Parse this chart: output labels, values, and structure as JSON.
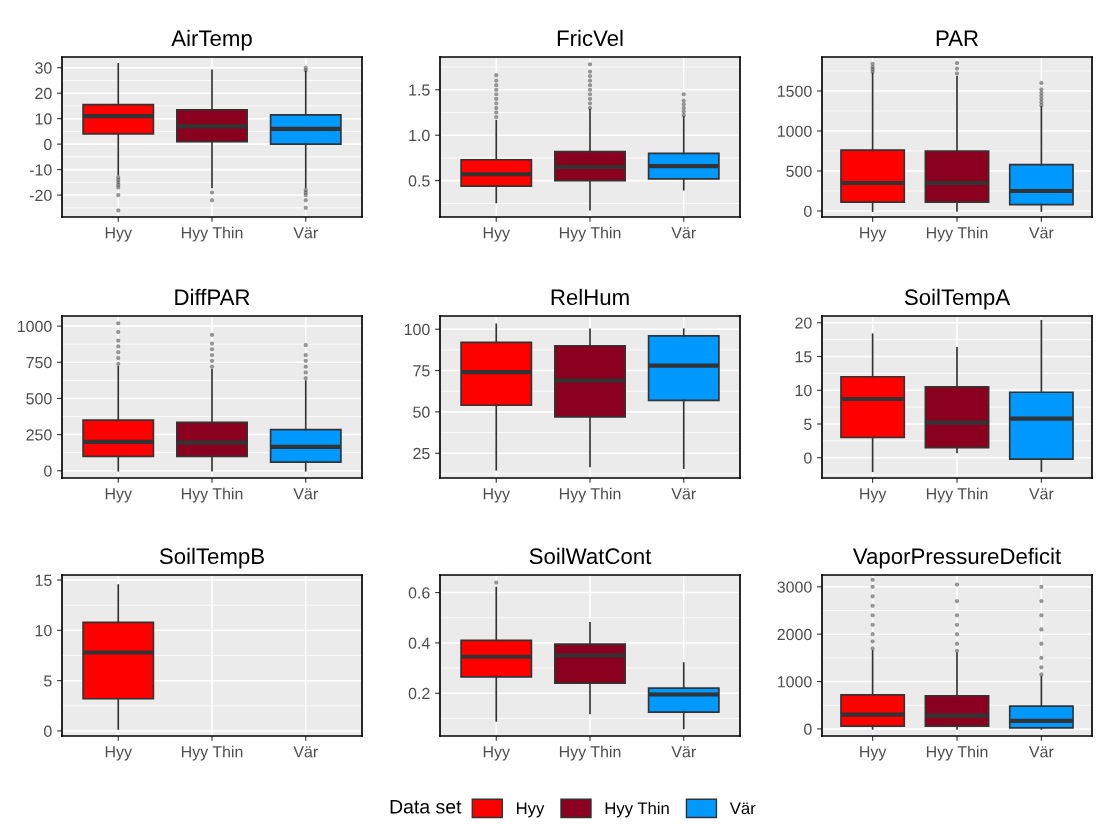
{
  "chart_data": [
    {
      "type": "box",
      "title": "AirTemp",
      "categories": [
        "Hyy",
        "Hyy Thin",
        "Vär"
      ],
      "colors": [
        "#ff0000",
        "#8b001e",
        "#0099ff"
      ],
      "ylim": [
        -28.6,
        34.2
      ],
      "yticks": [
        -20,
        -10,
        0,
        10,
        20,
        30
      ],
      "grid": true,
      "boxes": [
        {
          "low": -12,
          "q1": 4,
          "median": 11,
          "q3": 15.5,
          "high": 31.5,
          "outliers": [
            -13,
            -14,
            -15,
            -16,
            -17,
            -20,
            -26
          ]
        },
        {
          "low": -17,
          "q1": 1,
          "median": 7,
          "q3": 13.5,
          "high": 29,
          "outliers": [
            -19,
            -22
          ]
        },
        {
          "low": -17,
          "q1": 0,
          "median": 6,
          "q3": 11.5,
          "high": 28.5,
          "outliers": [
            29,
            30,
            -18,
            -19,
            -20,
            -22,
            -25
          ]
        }
      ]
    },
    {
      "type": "box",
      "title": "FricVel",
      "categories": [
        "Hyy",
        "Hyy Thin",
        "Vär"
      ],
      "colors": [
        "#ff0000",
        "#8b001e",
        "#0099ff"
      ],
      "ylim": [
        0.1,
        1.86
      ],
      "yticks": [
        {
          "value": 0.5,
          "label": "0.5"
        },
        {
          "value": 1.0,
          "label": "1.0"
        },
        {
          "value": 1.5,
          "label": "1.5"
        }
      ],
      "grid": true,
      "boxes": [
        {
          "low": 0.26,
          "q1": 0.44,
          "median": 0.57,
          "q3": 0.73,
          "high": 1.16,
          "outliers": [
            1.2,
            1.25,
            1.3,
            1.35,
            1.4,
            1.45,
            1.5,
            1.55,
            1.6,
            1.66
          ]
        },
        {
          "low": 0.18,
          "q1": 0.5,
          "median": 0.65,
          "q3": 0.82,
          "high": 1.28,
          "outliers": [
            1.3,
            1.35,
            1.4,
            1.45,
            1.5,
            1.55,
            1.6,
            1.65,
            1.7,
            1.78
          ]
        },
        {
          "low": 0.4,
          "q1": 0.52,
          "median": 0.66,
          "q3": 0.8,
          "high": 1.2,
          "outliers": [
            1.22,
            1.26,
            1.3,
            1.34,
            1.38,
            1.45
          ]
        }
      ]
    },
    {
      "type": "box",
      "title": "PAR",
      "categories": [
        "Hyy",
        "Hyy Thin",
        "Vär"
      ],
      "colors": [
        "#ff0000",
        "#8b001e",
        "#0099ff"
      ],
      "ylim": [
        -75,
        1925
      ],
      "yticks": [
        0,
        500,
        1000,
        1500
      ],
      "grid": true,
      "boxes": [
        {
          "low": 0,
          "q1": 110,
          "median": 350,
          "q3": 760,
          "high": 1720,
          "outliers": [
            1740,
            1770,
            1800,
            1840
          ]
        },
        {
          "low": 0,
          "q1": 110,
          "median": 350,
          "q3": 750,
          "high": 1680,
          "outliers": [
            1720,
            1780,
            1850
          ]
        },
        {
          "low": 0,
          "q1": 80,
          "median": 250,
          "q3": 580,
          "high": 1300,
          "outliers": [
            1320,
            1360,
            1400,
            1440,
            1480,
            1520,
            1600
          ]
        }
      ]
    },
    {
      "type": "box",
      "title": "DiffPAR",
      "categories": [
        "Hyy",
        "Hyy Thin",
        "Vär"
      ],
      "colors": [
        "#ff0000",
        "#8b001e",
        "#0099ff"
      ],
      "ylim": [
        -50,
        1070
      ],
      "yticks": [
        0,
        250,
        500,
        750,
        1000
      ],
      "grid": true,
      "boxes": [
        {
          "low": 0,
          "q1": 100,
          "median": 200,
          "q3": 350,
          "high": 720,
          "outliers": [
            740,
            780,
            820,
            860,
            900,
            960,
            1020
          ]
        },
        {
          "low": 0,
          "q1": 100,
          "median": 195,
          "q3": 335,
          "high": 700,
          "outliers": [
            720,
            760,
            800,
            840,
            880,
            940
          ]
        },
        {
          "low": 0,
          "q1": 60,
          "median": 165,
          "q3": 285,
          "high": 620,
          "outliers": [
            640,
            680,
            720,
            760,
            800,
            870
          ]
        }
      ]
    },
    {
      "type": "box",
      "title": "RelHum",
      "categories": [
        "Hyy",
        "Hyy Thin",
        "Vär"
      ],
      "colors": [
        "#ff0000",
        "#8b001e",
        "#0099ff"
      ],
      "ylim": [
        10,
        108
      ],
      "yticks": [
        25,
        50,
        75,
        100
      ],
      "grid": true,
      "boxes": [
        {
          "low": 15,
          "q1": 54,
          "median": 74,
          "q3": 92,
          "high": 103
        },
        {
          "low": 17,
          "q1": 47,
          "median": 69,
          "q3": 90,
          "high": 100
        },
        {
          "low": 16,
          "q1": 57,
          "median": 78,
          "q3": 96,
          "high": 100
        }
      ]
    },
    {
      "type": "box",
      "title": "SoilTempA",
      "categories": [
        "Hyy",
        "Hyy Thin",
        "Vär"
      ],
      "colors": [
        "#ff0000",
        "#8b001e",
        "#0099ff"
      ],
      "ylim": [
        -3,
        21
      ],
      "yticks": [
        0,
        5,
        10,
        15,
        20
      ],
      "grid": true,
      "boxes": [
        {
          "low": -2,
          "q1": 3,
          "median": 8.7,
          "q3": 12,
          "high": 18.3
        },
        {
          "low": 0.8,
          "q1": 1.5,
          "median": 5.2,
          "q3": 10.5,
          "high": 16.3
        },
        {
          "low": -2,
          "q1": -0.2,
          "median": 5.8,
          "q3": 9.7,
          "high": 20.3
        }
      ]
    },
    {
      "type": "box",
      "title": "SoilTempB",
      "categories": [
        "Hyy",
        "Hyy Thin",
        "Vär"
      ],
      "colors": [
        "#ff0000",
        "#8b001e",
        "#0099ff"
      ],
      "ylim": [
        -0.5,
        15.5
      ],
      "yticks": [
        0,
        5,
        10,
        15
      ],
      "grid": true,
      "boxes": [
        {
          "low": 0.2,
          "q1": 3.2,
          "median": 7.8,
          "q3": 10.8,
          "high": 14.5
        },
        null,
        null
      ]
    },
    {
      "type": "box",
      "title": "SoilWatCont",
      "categories": [
        "Hyy",
        "Hyy Thin",
        "Vär"
      ],
      "colors": [
        "#ff0000",
        "#8b001e",
        "#0099ff"
      ],
      "ylim": [
        0.03,
        0.67
      ],
      "yticks": [
        0.2,
        0.4,
        0.6
      ],
      "grid": true,
      "legend_title": "Data set",
      "boxes": [
        {
          "low": 0.09,
          "q1": 0.265,
          "median": 0.345,
          "q3": 0.41,
          "high": 0.62,
          "outliers": [
            0.64
          ]
        },
        {
          "low": 0.12,
          "q1": 0.24,
          "median": 0.35,
          "q3": 0.395,
          "high": 0.48
        },
        {
          "low": 0.06,
          "q1": 0.125,
          "median": 0.195,
          "q3": 0.22,
          "high": 0.32
        }
      ]
    },
    {
      "type": "box",
      "title": "VaporPressureDeficit",
      "categories": [
        "Hyy",
        "Hyy Thin",
        "Vär"
      ],
      "colors": [
        "#ff0000",
        "#8b001e",
        "#0099ff"
      ],
      "ylim": [
        -150,
        3250
      ],
      "yticks": [
        0,
        1000,
        2000,
        3000
      ],
      "grid": true,
      "boxes": [
        {
          "low": 0,
          "q1": 60,
          "median": 300,
          "q3": 720,
          "high": 1650,
          "outliers": [
            1700,
            1850,
            2000,
            2200,
            2400,
            2600,
            2800,
            3000,
            3150
          ]
        },
        {
          "low": 0,
          "q1": 60,
          "median": 280,
          "q3": 700,
          "high": 1600,
          "outliers": [
            1650,
            1800,
            2000,
            2200,
            2400,
            2700,
            3050
          ]
        },
        {
          "low": 0,
          "q1": 20,
          "median": 170,
          "q3": 480,
          "high": 1100,
          "outliers": [
            1150,
            1300,
            1500,
            1800,
            2100,
            2400,
            2700,
            3000
          ]
        }
      ]
    }
  ]
}
